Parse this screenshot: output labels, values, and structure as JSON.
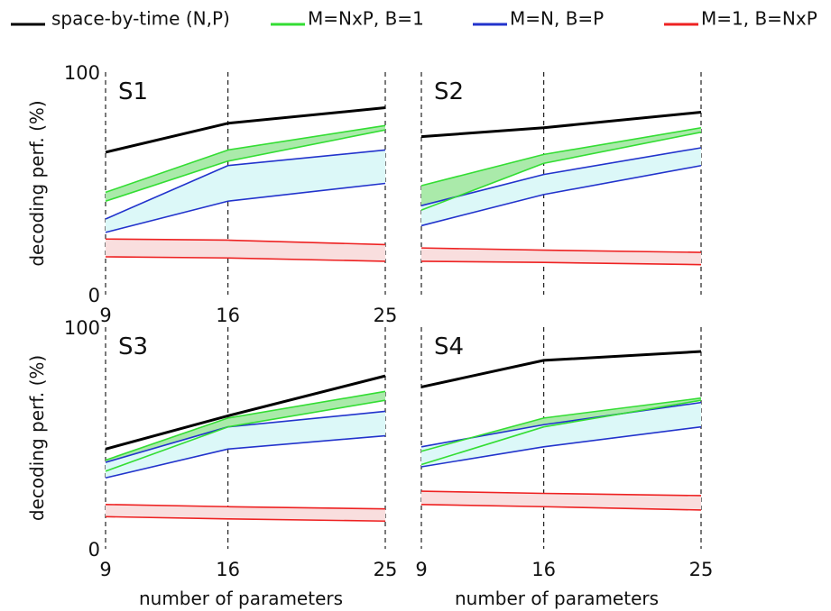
{
  "legend": [
    {
      "label": "space-by-time (N,P)",
      "color": "#000000"
    },
    {
      "label": "M=NxP, B=1",
      "color": "#33dd33"
    },
    {
      "label": "M=N, B=P",
      "color": "#2233cc"
    },
    {
      "label": "M=1, B=NxP",
      "color": "#ee2222"
    }
  ],
  "colors": {
    "space_by_time": "#000000",
    "nxp_line": "#33dd33",
    "nxp_fill": "#aaeaaa",
    "n_line": "#2233cc",
    "n_fill": "#dcf8f8",
    "one_line": "#ee2222",
    "one_fill": "#f9dede"
  },
  "chart_data": [
    {
      "type": "line",
      "panel": "S1",
      "x": [
        9,
        16,
        25
      ],
      "xlim": [
        9,
        25
      ],
      "ylim": [
        0,
        100
      ],
      "xticks": [
        "9",
        "16",
        "25"
      ],
      "yticks": [
        "0",
        "100"
      ],
      "xlabel": "",
      "ylabel": "decoding perf. (%)",
      "series": [
        {
          "name": "space-by-time (N,P)",
          "values": [
            64,
            77,
            84
          ]
        },
        {
          "name": "M=NxP, B=1",
          "upper": [
            46,
            65,
            76
          ],
          "lower": [
            42,
            60,
            74
          ]
        },
        {
          "name": "M=N, B=P",
          "upper": [
            34,
            58,
            65
          ],
          "lower": [
            28,
            42,
            50
          ]
        },
        {
          "name": "M=1, B=NxP",
          "upper": [
            25,
            24.5,
            22.5
          ],
          "lower": [
            17,
            16.5,
            15
          ]
        }
      ]
    },
    {
      "type": "line",
      "panel": "S2",
      "x": [
        9,
        16,
        25
      ],
      "xlim": [
        9,
        25
      ],
      "ylim": [
        0,
        100
      ],
      "xticks": [],
      "yticks": [],
      "xlabel": "",
      "ylabel": "",
      "series": [
        {
          "name": "space-by-time (N,P)",
          "values": [
            71,
            75,
            82
          ]
        },
        {
          "name": "M=NxP, B=1",
          "upper": [
            49,
            63,
            75
          ],
          "lower": [
            38,
            59,
            73
          ]
        },
        {
          "name": "M=N, B=P",
          "upper": [
            40,
            54,
            66
          ],
          "lower": [
            31,
            45,
            58
          ]
        },
        {
          "name": "M=1, B=NxP",
          "upper": [
            21,
            20,
            19
          ],
          "lower": [
            15,
            14.5,
            13.5
          ]
        }
      ]
    },
    {
      "type": "line",
      "panel": "S3",
      "x": [
        9,
        16,
        25
      ],
      "xlim": [
        9,
        25
      ],
      "ylim": [
        0,
        100
      ],
      "xticks": [
        "9",
        "16",
        "25"
      ],
      "yticks": [
        "0",
        "100"
      ],
      "xlabel": "number of parameters",
      "ylabel": "decoding perf. (%)",
      "series": [
        {
          "name": "space-by-time (N,P)",
          "values": [
            45,
            60,
            78
          ]
        },
        {
          "name": "M=NxP, B=1",
          "upper": [
            40,
            59,
            71
          ],
          "lower": [
            35,
            55,
            67
          ]
        },
        {
          "name": "M=N, B=P",
          "upper": [
            39,
            55,
            62
          ],
          "lower": [
            32,
            45,
            51
          ]
        },
        {
          "name": "M=1, B=NxP",
          "upper": [
            20,
            19,
            18
          ],
          "lower": [
            14.5,
            13.5,
            12.5
          ]
        }
      ]
    },
    {
      "type": "line",
      "panel": "S4",
      "x": [
        9,
        16,
        25
      ],
      "xlim": [
        9,
        25
      ],
      "ylim": [
        0,
        100
      ],
      "xticks": [
        "9",
        "16",
        "25"
      ],
      "yticks": [],
      "xlabel": "number of parameters",
      "ylabel": "",
      "series": [
        {
          "name": "space-by-time (N,P)",
          "values": [
            73,
            85,
            89
          ]
        },
        {
          "name": "M=NxP, B=1",
          "upper": [
            44,
            59,
            68
          ],
          "lower": [
            38,
            55,
            67
          ]
        },
        {
          "name": "M=N, B=P",
          "upper": [
            46,
            56,
            66
          ],
          "lower": [
            37,
            46,
            55
          ]
        },
        {
          "name": "M=1, B=NxP",
          "upper": [
            26,
            25,
            24
          ],
          "lower": [
            20,
            19,
            17.5
          ]
        }
      ]
    }
  ]
}
